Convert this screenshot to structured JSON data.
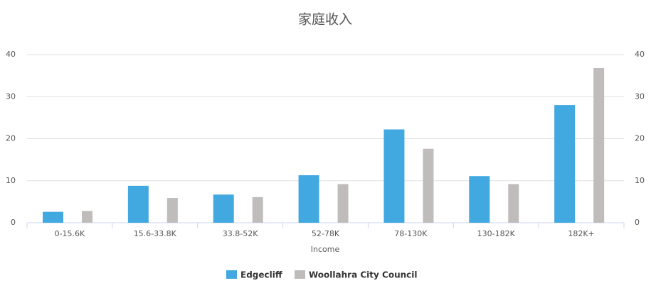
{
  "chart_data": {
    "type": "bar",
    "title": "家庭收入",
    "x_label": "Income",
    "categories": [
      "0-15.6K",
      "15.6-33.8K",
      "33.8-52K",
      "52-78K",
      "78-130K",
      "130-182K",
      "182K+"
    ],
    "series": [
      {
        "name": "Edgecliff",
        "color": "#41a9e0",
        "values": [
          2.6,
          8.8,
          6.7,
          11.3,
          22.2,
          11.1,
          28.0
        ]
      },
      {
        "name": "Woollahra City Council",
        "color": "#c0bcbc",
        "values": [
          2.8,
          5.9,
          6.1,
          9.2,
          17.6,
          9.2,
          36.8
        ]
      }
    ],
    "ylim": [
      0,
      40
    ],
    "yticks": [
      0,
      10,
      20,
      30,
      40
    ],
    "y2lim": [
      0,
      40
    ],
    "y2ticks": [
      0,
      10,
      20,
      30,
      40
    ],
    "grid": true,
    "legend": "bottom"
  }
}
